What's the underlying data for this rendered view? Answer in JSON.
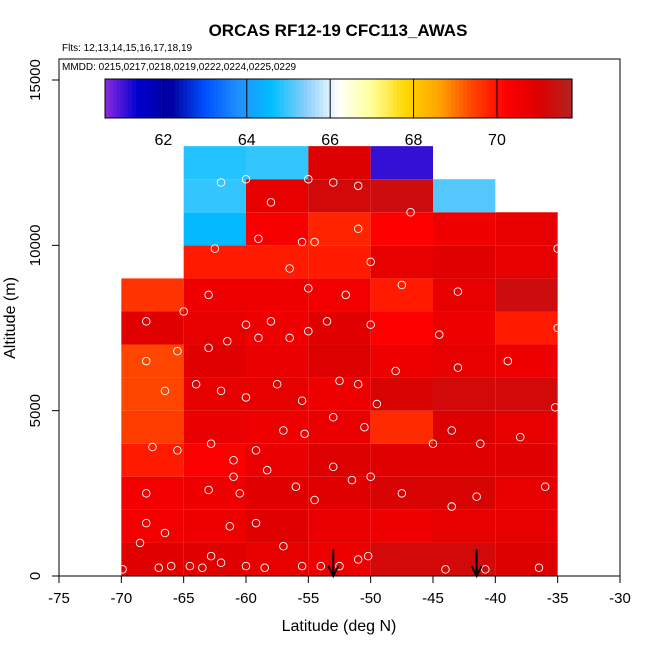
{
  "chart_data": {
    "type": "heatmap",
    "title": "ORCAS RF12-19 CFC113_AWAS",
    "subtitle_flights": "Flts: 12,13,14,15,16,17,18,19",
    "subtitle_dates": "MMDD: 0215,0217,0218,0219,0222,0224,0225,0229",
    "xlabel": "Latitude (deg N)",
    "ylabel": "Altitude (m)",
    "xlim": [
      -75,
      -30
    ],
    "ylim": [
      0,
      16000
    ],
    "xticks": [
      -75,
      -70,
      -65,
      -60,
      -55,
      -50,
      -45,
      -40,
      -35,
      -30
    ],
    "yticks": [
      0,
      5000,
      10000,
      15000
    ],
    "x_tick_labels": [
      "-75",
      "-70",
      "-65",
      "-60",
      "-55",
      "-50",
      "-45",
      "-40",
      "-35",
      "-30"
    ],
    "y_tick_labels": [
      "0",
      "5000",
      "10000",
      "15000"
    ],
    "colorbar": {
      "range": [
        60.6,
        71.8
      ],
      "ticks": [
        62,
        64,
        66,
        68,
        70
      ],
      "tick_labels": [
        "62",
        "64",
        "66",
        "68",
        "70"
      ],
      "colors": [
        "#8a2be2",
        "#0000cd",
        "#0000a0",
        "#0050ff",
        "#1e90ff",
        "#00bfff",
        "#87cefa",
        "#ffffff",
        "#ffff99",
        "#ffd700",
        "#ffa500",
        "#ff4500",
        "#ff0000",
        "#dd0000",
        "#b22222"
      ]
    },
    "lat_bins": [
      -70,
      -65,
      -60,
      -55,
      -50,
      -45,
      -40,
      -35
    ],
    "alt_bins": [
      0,
      1000,
      2000,
      3000,
      4000,
      5000,
      6000,
      7000,
      8000,
      9000,
      10000,
      11000,
      12000
    ],
    "cells": [
      [
        70.9,
        70.9,
        70.8,
        70.6,
        71.2,
        71.2,
        71.0
      ],
      [
        70.5,
        70.6,
        70.9,
        70.7,
        70.6,
        70.8,
        70.8
      ],
      [
        70.5,
        70.6,
        70.9,
        70.9,
        71.1,
        71.1,
        70.8
      ],
      [
        69.9,
        70.3,
        70.7,
        71.0,
        70.9,
        70.9,
        70.9
      ],
      [
        69.5,
        70.7,
        70.6,
        70.7,
        69.7,
        71.0,
        70.8
      ],
      [
        69.4,
        70.8,
        70.8,
        70.6,
        71.1,
        71.2,
        71.2
      ],
      [
        69.4,
        70.9,
        70.7,
        71.0,
        70.6,
        70.8,
        70.6
      ],
      [
        70.9,
        70.8,
        70.6,
        70.9,
        70.2,
        70.6,
        69.9
      ],
      [
        69.6,
        70.6,
        70.6,
        70.5,
        69.9,
        70.8,
        71.3
      ],
      [
        null,
        69.9,
        69.9,
        69.9,
        70.8,
        70.9,
        70.8
      ],
      [
        null,
        64.5,
        70.4,
        69.8,
        70.2,
        70.6,
        70.8
      ],
      [
        null,
        64.9,
        70.8,
        71.2,
        71.3,
        65.1,
        null
      ],
      [
        null,
        64.8,
        64.9,
        71.0,
        61.1,
        null,
        null
      ]
    ],
    "observations": [
      [
        -69.9,
        200
      ],
      [
        -68.5,
        1000
      ],
      [
        -68.0,
        1600
      ],
      [
        -67.0,
        250
      ],
      [
        -66.5,
        1300
      ],
      [
        -66.0,
        300
      ],
      [
        -64.5,
        300
      ],
      [
        -63.5,
        250
      ],
      [
        -62.8,
        600
      ],
      [
        -62.0,
        400
      ],
      [
        -61.3,
        1500
      ],
      [
        -60.0,
        300
      ],
      [
        -59.2,
        1600
      ],
      [
        -58.5,
        250
      ],
      [
        -57.0,
        900
      ],
      [
        -55.5,
        300
      ],
      [
        -54.0,
        300
      ],
      [
        -52.5,
        300
      ],
      [
        -51.0,
        500
      ],
      [
        -50.2,
        600
      ],
      [
        -44.0,
        200
      ],
      [
        -40.8,
        200
      ],
      [
        -36.5,
        250
      ],
      [
        -68.0,
        2500
      ],
      [
        -63.0,
        2600
      ],
      [
        -61.0,
        3000
      ],
      [
        -60.5,
        2500
      ],
      [
        -58.3,
        3200
      ],
      [
        -56.0,
        2700
      ],
      [
        -54.5,
        2300
      ],
      [
        -53.0,
        3300
      ],
      [
        -51.5,
        2900
      ],
      [
        -50.0,
        3000
      ],
      [
        -47.5,
        2500
      ],
      [
        -43.5,
        2100
      ],
      [
        -41.5,
        2400
      ],
      [
        -36.0,
        2700
      ],
      [
        -67.5,
        3900
      ],
      [
        -65.5,
        3800
      ],
      [
        -62.8,
        4000
      ],
      [
        -61.0,
        3500
      ],
      [
        -59.2,
        3800
      ],
      [
        -57.0,
        4400
      ],
      [
        -55.3,
        4300
      ],
      [
        -53.0,
        4800
      ],
      [
        -50.5,
        4500
      ],
      [
        -49.5,
        5200
      ],
      [
        -45.0,
        4000
      ],
      [
        -43.5,
        4400
      ],
      [
        -41.2,
        4000
      ],
      [
        -38.0,
        4200
      ],
      [
        -35.2,
        5100
      ],
      [
        -66.5,
        5600
      ],
      [
        -64.0,
        5800
      ],
      [
        -62.0,
        5600
      ],
      [
        -60.0,
        5400
      ],
      [
        -57.5,
        5800
      ],
      [
        -55.5,
        5300
      ],
      [
        -52.5,
        5900
      ],
      [
        -51.0,
        5800
      ],
      [
        -48.0,
        6200
      ],
      [
        -43.0,
        6300
      ],
      [
        -39.0,
        6500
      ],
      [
        -68.0,
        6500
      ],
      [
        -65.5,
        6800
      ],
      [
        -63.0,
        6900
      ],
      [
        -61.5,
        7100
      ],
      [
        -59.0,
        7200
      ],
      [
        -56.5,
        7200
      ],
      [
        -55.0,
        7400
      ],
      [
        -53.5,
        7700
      ],
      [
        -50.0,
        7600
      ],
      [
        -44.5,
        7300
      ],
      [
        -35.0,
        7500
      ],
      [
        -68.0,
        7700
      ],
      [
        -65.0,
        8000
      ],
      [
        -63.0,
        8500
      ],
      [
        -60.0,
        7600
      ],
      [
        -58.0,
        7700
      ],
      [
        -55.0,
        8700
      ],
      [
        -52.0,
        8500
      ],
      [
        -50.0,
        9500
      ],
      [
        -47.5,
        8800
      ],
      [
        -43.0,
        8600
      ],
      [
        -62.5,
        9900
      ],
      [
        -59.0,
        10200
      ],
      [
        -56.5,
        9300
      ],
      [
        -55.5,
        10100
      ],
      [
        -54.5,
        10100
      ],
      [
        -51.0,
        10500
      ],
      [
        -35.0,
        9900
      ],
      [
        -62.0,
        11900
      ],
      [
        -60.0,
        12000
      ],
      [
        -58.0,
        11300
      ],
      [
        -55.0,
        12000
      ],
      [
        -53.0,
        11900
      ],
      [
        -51.0,
        11800
      ],
      [
        -46.8,
        11000
      ]
    ],
    "arrows": [
      -53.0,
      -41.5
    ]
  }
}
